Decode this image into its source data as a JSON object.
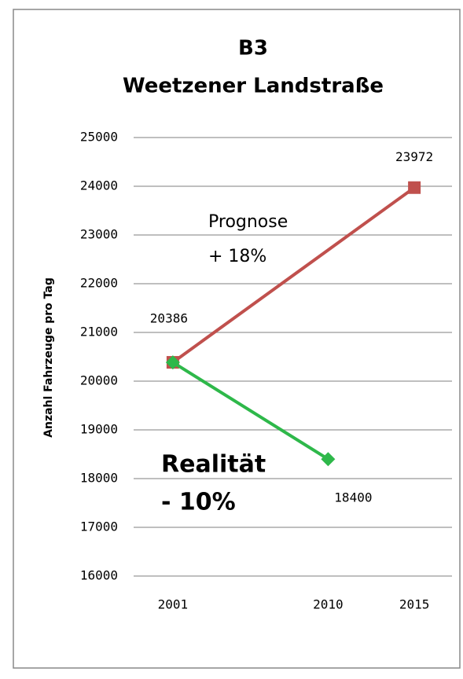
{
  "chart_data": {
    "type": "line",
    "title": [
      "B3",
      "Weetzener Landstraße"
    ],
    "ylabel": "Anzahl Fahrzeuge pro Tag",
    "xlim": [
      1999,
      2017
    ],
    "xticks": [
      2001,
      2010,
      2015
    ],
    "ylim": [
      16000,
      25000
    ],
    "yticks": [
      16000,
      17000,
      18000,
      19000,
      20000,
      21000,
      22000,
      23000,
      24000,
      25000
    ],
    "grid": true,
    "series": [
      {
        "name": "Prognose",
        "color": "#c0504d",
        "marker": "square",
        "x": [
          2001,
          2015
        ],
        "values": [
          20386,
          23972
        ],
        "labeled": [
          true,
          true
        ]
      },
      {
        "name": "Realität",
        "color": "#2eb84a",
        "marker": "diamond",
        "x": [
          2001,
          2010
        ],
        "values": [
          20386,
          18400
        ],
        "labeled": [
          false,
          true
        ]
      }
    ],
    "annotations": [
      "+ 18%",
      "- 10%"
    ]
  }
}
